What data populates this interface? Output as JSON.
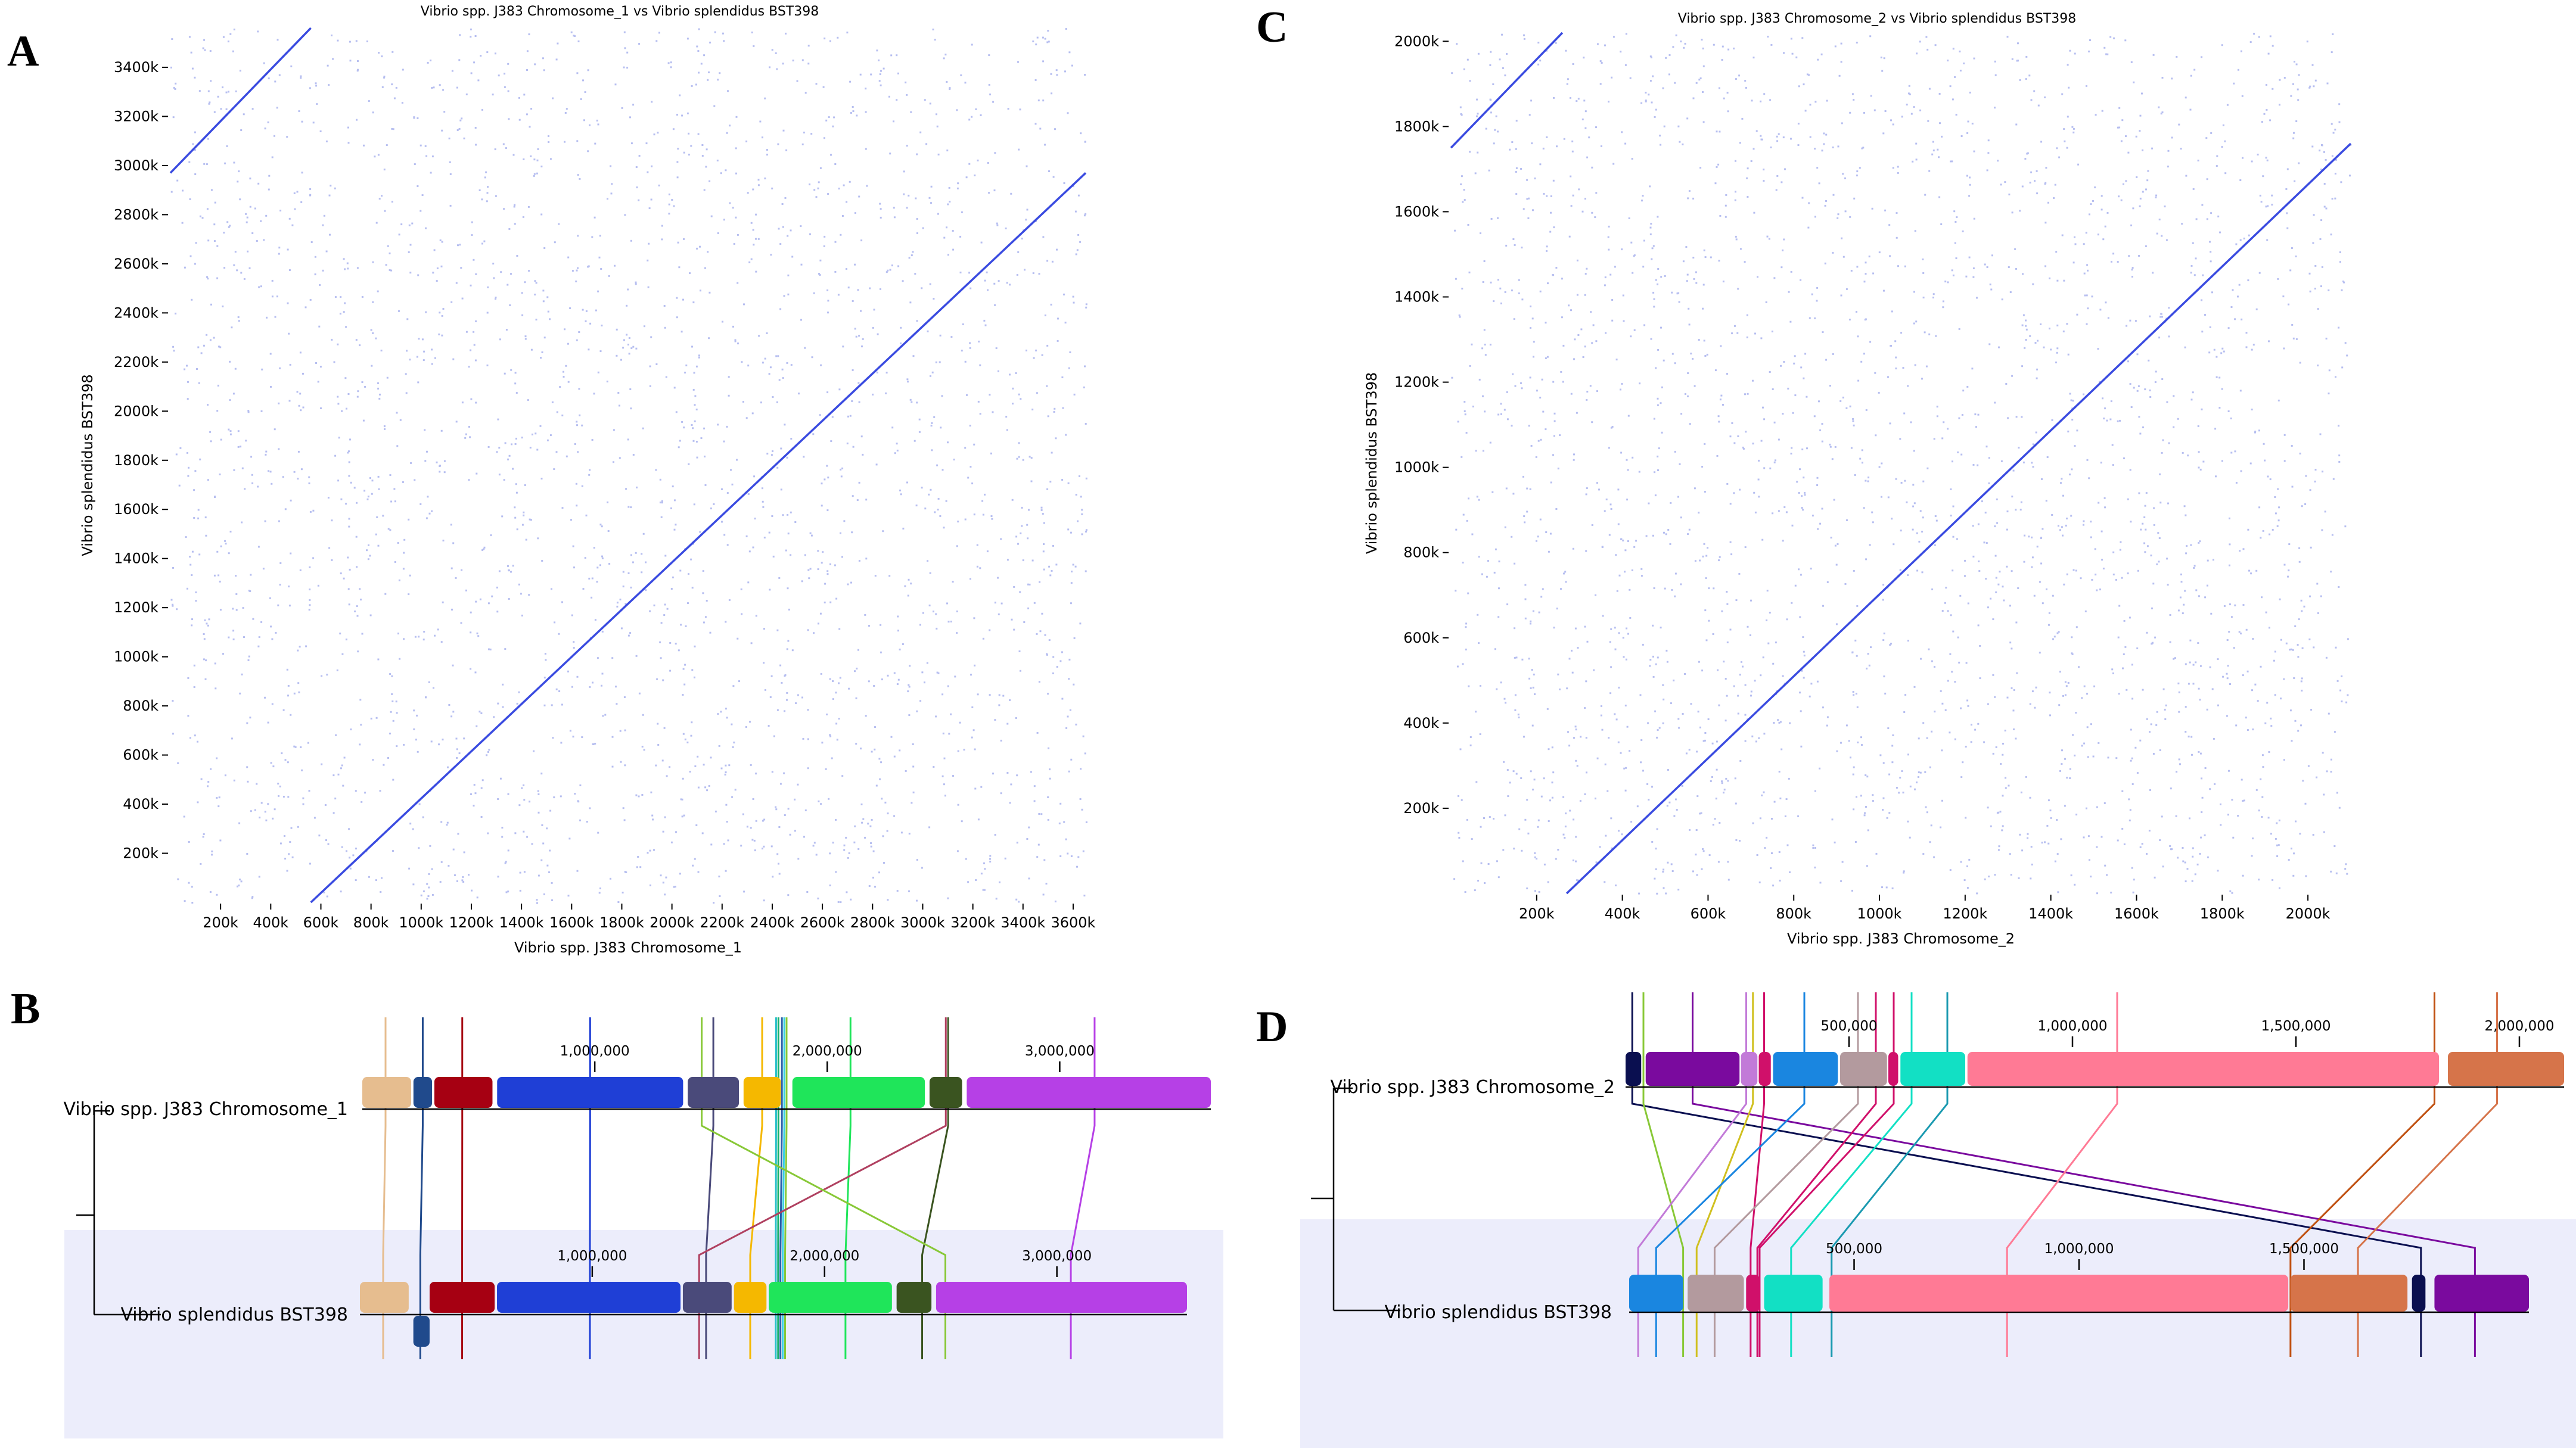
{
  "panels": {
    "A": {
      "letter": "A",
      "title": "Vibrio spp. J383 Chromosome_1 vs Vibrio splendidus BST398"
    },
    "B": {
      "letter": "B"
    },
    "C": {
      "letter": "C",
      "title": "Vibrio spp. J383 Chromosome_2 vs Vibrio splendidus BST398"
    },
    "D": {
      "letter": "D"
    }
  },
  "chart_data": [
    {
      "id": "A",
      "type": "scatter",
      "title": "Vibrio spp. J383 Chromosome_1 vs Vibrio splendidus BST398",
      "xlabel": "Vibrio spp. J383 Chromosome_1",
      "ylabel": "Vibrio splendidus BST398",
      "xlim": [
        0,
        3650000
      ],
      "ylim": [
        0,
        3560000
      ],
      "x_ticks": [
        200000,
        400000,
        600000,
        800000,
        1000000,
        1200000,
        1400000,
        1600000,
        1800000,
        2000000,
        2200000,
        2400000,
        2600000,
        2800000,
        3000000,
        3200000,
        3400000,
        3600000
      ],
      "x_tick_labels": [
        "200k",
        "400k",
        "600k",
        "800k",
        "1000k",
        "1200k",
        "1400k",
        "1600k",
        "1800k",
        "2000k",
        "2200k",
        "2400k",
        "2600k",
        "2800k",
        "3000k",
        "3200k",
        "3400k",
        "3600k"
      ],
      "y_ticks": [
        200000,
        400000,
        600000,
        800000,
        1000000,
        1200000,
        1400000,
        1600000,
        1800000,
        2000000,
        2200000,
        2400000,
        2600000,
        2800000,
        3000000,
        3200000,
        3400000
      ],
      "y_tick_labels": [
        "200k",
        "400k",
        "600k",
        "800k",
        "1000k",
        "1200k",
        "1400k",
        "1600k",
        "1800k",
        "2000k",
        "2200k",
        "2400k",
        "2600k",
        "2800k",
        "3000k",
        "3200k",
        "3400k"
      ],
      "color": "#3a4be0",
      "series": [
        {
          "segments": [
            {
              "from": [
                560000,
                0
              ],
              "to": [
                3650000,
                2970000
              ]
            },
            {
              "from": [
                0,
                2970000
              ],
              "to": [
                560000,
                3560000
              ]
            }
          ]
        }
      ]
    },
    {
      "id": "C",
      "type": "scatter",
      "title": "Vibrio spp. J383 Chromosome_2 vs Vibrio splendidus BST398",
      "xlabel": "Vibrio spp. J383 Chromosome_2",
      "ylabel": "Vibrio splendidus BST398",
      "xlim": [
        0,
        2100000
      ],
      "ylim": [
        0,
        2020000
      ],
      "x_ticks": [
        200000,
        400000,
        600000,
        800000,
        1000000,
        1200000,
        1400000,
        1600000,
        1800000,
        2000000
      ],
      "x_tick_labels": [
        "200k",
        "400k",
        "600k",
        "800k",
        "1000k",
        "1200k",
        "1400k",
        "1600k",
        "1800k",
        "2000k"
      ],
      "y_ticks": [
        200000,
        400000,
        600000,
        800000,
        1000000,
        1200000,
        1400000,
        1600000,
        1800000,
        2000000
      ],
      "y_tick_labels": [
        "200k",
        "400k",
        "600k",
        "800k",
        "1000k",
        "1200k",
        "1400k",
        "1600k",
        "1800k",
        "2000k"
      ],
      "color": "#3a4be0",
      "series": [
        {
          "segments": [
            {
              "from": [
                270000,
                0
              ],
              "to": [
                2100000,
                1760000
              ]
            },
            {
              "from": [
                0,
                1750000
              ],
              "to": [
                260000,
                2020000
              ]
            }
          ]
        }
      ]
    },
    {
      "id": "B",
      "type": "alignment",
      "genomes": [
        {
          "name": "Vibrio spp. J383 Chromosome_1",
          "length": 3650000,
          "scale_labels": [
            "1,000,000",
            "2,000,000",
            "3,000,000"
          ],
          "scale_values": [
            1000000,
            2000000,
            3000000
          ],
          "blocks": [
            {
              "start": 0,
              "end": 210000,
              "color": "#e6bd8f"
            },
            {
              "start": 220000,
              "end": 300000,
              "color": "#204a8c"
            },
            {
              "start": 310000,
              "end": 560000,
              "color": "#a60012"
            },
            {
              "start": 580000,
              "end": 1380000,
              "color": "#1f3fd6"
            },
            {
              "start": 1400000,
              "end": 1620000,
              "color": "#4a4a7a"
            },
            {
              "start": 1640000,
              "end": 1800000,
              "color": "#f5b800"
            },
            {
              "start": 1850000,
              "end": 2420000,
              "color": "#1fe55a"
            },
            {
              "start": 2440000,
              "end": 2580000,
              "color": "#3a5420"
            },
            {
              "start": 2600000,
              "end": 3650000,
              "color": "#b640e6"
            }
          ]
        },
        {
          "name": "Vibrio splendidus BST398",
          "length": 3560000,
          "scale_labels": [
            "1,000,000",
            "2,000,000",
            "3,000,000"
          ],
          "scale_values": [
            1000000,
            2000000,
            3000000
          ],
          "blocks": [
            {
              "start": 0,
              "end": 210000,
              "color": "#e6bd8f"
            },
            {
              "start": 230000,
              "end": 300000,
              "color": "#204a8c",
              "inverted": true
            },
            {
              "start": 300000,
              "end": 580000,
              "color": "#a60012"
            },
            {
              "start": 590000,
              "end": 1380000,
              "color": "#1f3fd6"
            },
            {
              "start": 1390000,
              "end": 1600000,
              "color": "#4a4a7a"
            },
            {
              "start": 1610000,
              "end": 1750000,
              "color": "#f5b800"
            },
            {
              "start": 1760000,
              "end": 2290000,
              "color": "#1fe55a"
            },
            {
              "start": 2310000,
              "end": 2460000,
              "color": "#3a5420"
            },
            {
              "start": 2480000,
              "end": 3560000,
              "color": "#b640e6"
            }
          ]
        }
      ],
      "links": [
        {
          "top": 100000,
          "bottom": 100000,
          "color": "#e6bd8f"
        },
        {
          "top": 260000,
          "bottom": 260000,
          "color": "#204a8c"
        },
        {
          "top": 430000,
          "bottom": 440000,
          "color": "#a60012"
        },
        {
          "top": 980000,
          "bottom": 990000,
          "color": "#1f3fd6"
        },
        {
          "top": 1510000,
          "bottom": 1490000,
          "color": "#4a4a7a"
        },
        {
          "top": 1720000,
          "bottom": 1680000,
          "color": "#f5b800"
        },
        {
          "top": 1780000,
          "bottom": 1790000,
          "color": "#27c0c8"
        },
        {
          "top": 1790000,
          "bottom": 1800000,
          "color": "#17b06b"
        },
        {
          "top": 1805000,
          "bottom": 1810000,
          "color": "#2a5fa8"
        },
        {
          "top": 1815000,
          "bottom": 1820000,
          "color": "#3ad0e6"
        },
        {
          "top": 1825000,
          "bottom": 1830000,
          "color": "#88c837"
        },
        {
          "top": 2520000,
          "bottom": 2420000,
          "color": "#3a5420"
        },
        {
          "top": 2100000,
          "bottom": 2090000,
          "color": "#1fe55a"
        },
        {
          "top": 2510000,
          "bottom": 1460000,
          "color": "#b04060"
        },
        {
          "top": 1460000,
          "bottom": 2520000,
          "color": "#88c837"
        },
        {
          "top": 3150000,
          "bottom": 3060000,
          "color": "#b640e6"
        }
      ]
    },
    {
      "id": "D",
      "type": "alignment",
      "genomes": [
        {
          "name": "Vibrio spp. J383 Chromosome_2",
          "length": 2100000,
          "scale_labels": [
            "500,000",
            "1,000,000",
            "1,500,000",
            "2,000,000"
          ],
          "scale_values": [
            500000,
            1000000,
            1500000,
            2000000
          ],
          "blocks": [
            {
              "start": 0,
              "end": 35000,
              "color": "#0a0f50"
            },
            {
              "start": 45000,
              "end": 255000,
              "color": "#7a0a9e"
            },
            {
              "start": 258000,
              "end": 295000,
              "color": "#c27ad8"
            },
            {
              "start": 298000,
              "end": 325000,
              "color": "#d0106a"
            },
            {
              "start": 330000,
              "end": 475000,
              "color": "#1a86e0"
            },
            {
              "start": 480000,
              "end": 585000,
              "color": "#b39a9e"
            },
            {
              "start": 588000,
              "end": 610000,
              "color": "#d0106a"
            },
            {
              "start": 615000,
              "end": 760000,
              "color": "#12e0c4"
            },
            {
              "start": 765000,
              "end": 1820000,
              "color": "#ff7a95"
            },
            {
              "start": 1840000,
              "end": 2100000,
              "color": "#d6744a"
            }
          ]
        },
        {
          "name": "Vibrio splendidus BST398",
          "length": 2000000,
          "scale_labels": [
            "500,000",
            "1,000,000",
            "1,500,000"
          ],
          "scale_values": [
            500000,
            1000000,
            1500000
          ],
          "blocks": [
            {
              "start": 0,
              "end": 120000,
              "color": "#1a86e0"
            },
            {
              "start": 130000,
              "end": 255000,
              "color": "#b39a9e"
            },
            {
              "start": 260000,
              "end": 290000,
              "color": "#d0106a"
            },
            {
              "start": 300000,
              "end": 430000,
              "color": "#12e0c4"
            },
            {
              "start": 445000,
              "end": 1465000,
              "color": "#ff7a95"
            },
            {
              "start": 1470000,
              "end": 1730000,
              "color": "#d6744a"
            },
            {
              "start": 1740000,
              "end": 1770000,
              "color": "#0a0f50"
            },
            {
              "start": 1790000,
              "end": 2000000,
              "color": "#7a0a9e"
            }
          ]
        }
      ],
      "links": [
        {
          "top": 15000,
          "bottom": 1760000,
          "color": "#0a0f50"
        },
        {
          "top": 150000,
          "bottom": 1880000,
          "color": "#7a0a9e"
        },
        {
          "top": 40000,
          "bottom": 120000,
          "color": "#88c837"
        },
        {
          "top": 270000,
          "bottom": 20000,
          "color": "#c27ad8"
        },
        {
          "top": 285000,
          "bottom": 150000,
          "color": "#d0c020"
        },
        {
          "top": 310000,
          "bottom": 270000,
          "color": "#d0106a"
        },
        {
          "top": 400000,
          "bottom": 60000,
          "color": "#1a86e0"
        },
        {
          "top": 520000,
          "bottom": 190000,
          "color": "#b39a9e"
        },
        {
          "top": 560000,
          "bottom": 285000,
          "color": "#d0106a"
        },
        {
          "top": 600000,
          "bottom": 290000,
          "color": "#d0106a"
        },
        {
          "top": 640000,
          "bottom": 360000,
          "color": "#12e0c4"
        },
        {
          "top": 720000,
          "bottom": 450000,
          "color": "#1a9ab0"
        },
        {
          "top": 1100000,
          "bottom": 840000,
          "color": "#ff7a95"
        },
        {
          "top": 1810000,
          "bottom": 1470000,
          "color": "#c05010"
        },
        {
          "top": 1950000,
          "bottom": 1620000,
          "color": "#d6744a"
        }
      ]
    }
  ]
}
